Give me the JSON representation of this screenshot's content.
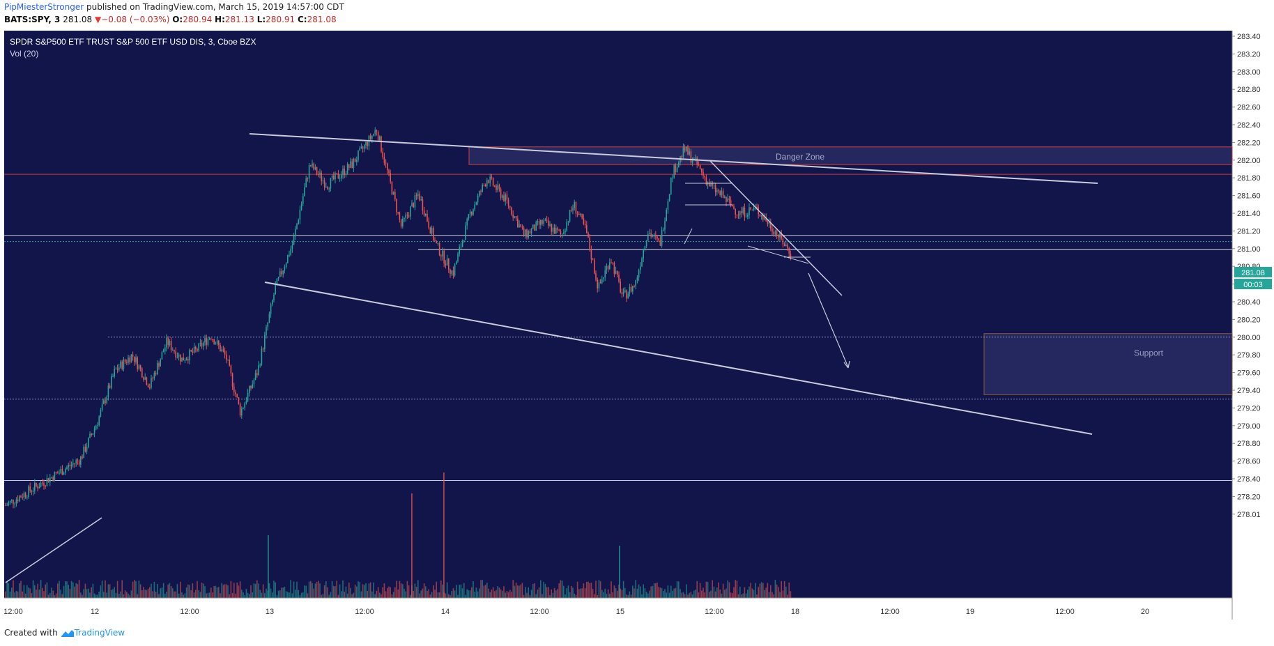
{
  "header": {
    "author": "PipMiesterStronger",
    "published_text": "published on TradingView.com, March 15, 2019 14:57:00 CDT",
    "symbol": "BATS:SPY, 3",
    "last": "281.08",
    "change": "−0.08 (−0.03%)",
    "o_label": "O:",
    "o_value": "280.94",
    "h_label": "H:",
    "h_value": "281.13",
    "l_label": "L:",
    "l_value": "280.91",
    "c_label": "C:",
    "c_value": "281.08"
  },
  "footer": {
    "created_with": "Created with",
    "brand": "TradingView"
  },
  "colors": {
    "background": "#12154a",
    "up": "#26a69a",
    "down": "#ef5350",
    "drawing": "#c9ccdc",
    "zone_border": "#d23c3c",
    "support_border": "#8a5a3a"
  },
  "chart_data": {
    "type": "candlestick",
    "title": "SPDR S&P500 ETF TRUST S&P 500 ETF USD DIS, 3, Cboe BZX",
    "indicator": "Vol (20)",
    "ylim": [
      277.92,
      283.5
    ],
    "y_ticks": [
      "283.40",
      "283.20",
      "283.00",
      "282.80",
      "282.60",
      "282.40",
      "282.20",
      "282.00",
      "281.80",
      "281.60",
      "281.40",
      "281.20",
      "281.00",
      "280.80",
      "280.60",
      "280.40",
      "280.20",
      "280.00",
      "279.80",
      "279.60",
      "279.40",
      "279.20",
      "279.00",
      "278.80",
      "278.60",
      "278.40",
      "278.20",
      "278.01"
    ],
    "x_ticks": [
      "12:00",
      "12",
      "12:00",
      "13",
      "12:00",
      "14",
      "12:00",
      "15",
      "12:00",
      "18",
      "12:00",
      "19",
      "12:00",
      "20"
    ],
    "last_price": "281.08",
    "countdown": "00:03",
    "price_path": [
      [
        "12:00",
        278.1
      ],
      [
        "12",
        278.62
      ],
      [
        "12",
        279.05
      ],
      [
        "12",
        279.62
      ],
      [
        "12",
        279.8
      ],
      [
        "12",
        279.45
      ],
      [
        "12:00",
        279.95
      ],
      [
        "12:00",
        279.75
      ],
      [
        "12:00",
        279.85
      ],
      [
        "12:00",
        280.02
      ],
      [
        "12:00",
        279.78
      ],
      [
        "13",
        279.15
      ],
      [
        "13",
        279.62
      ],
      [
        "13",
        280.55
      ],
      [
        "13",
        281.05
      ],
      [
        "13",
        281.95
      ],
      [
        "12:00",
        281.72
      ],
      [
        "12:00",
        281.95
      ],
      [
        "12:00",
        282.35
      ],
      [
        "14",
        281.25
      ],
      [
        "14",
        281.62
      ],
      [
        "14",
        281.05
      ],
      [
        "14",
        280.72
      ],
      [
        "14",
        281.4
      ],
      [
        "12:00",
        281.8
      ],
      [
        "12:00",
        281.55
      ],
      [
        "12:00",
        281.15
      ],
      [
        "12:00",
        281.3
      ],
      [
        "15",
        281.15
      ],
      [
        "15",
        281.5
      ],
      [
        "15",
        281.2
      ],
      [
        "15",
        280.55
      ],
      [
        "15",
        280.9
      ],
      [
        "15",
        280.45
      ],
      [
        "15",
        280.6
      ],
      [
        "12:00",
        281.2
      ],
      [
        "12:00",
        281.05
      ],
      [
        "12:00",
        281.85
      ],
      [
        "12:00",
        282.12
      ],
      [
        "12:00",
        281.95
      ],
      [
        "12:00",
        281.72
      ],
      [
        "18",
        281.6
      ],
      [
        "18",
        281.4
      ],
      [
        "18",
        281.45
      ],
      [
        "18",
        281.22
      ],
      [
        "18",
        280.95
      ]
    ],
    "horizontal_levels": [
      281.84,
      281.15,
      281.08,
      280.99,
      280.0,
      279.3,
      278.38
    ],
    "zones": [
      {
        "label": "Danger Zone",
        "from": 281.95,
        "to": 282.15
      },
      {
        "label": "Support",
        "from": 279.35,
        "to": 280.04
      }
    ],
    "volume_spikes": [
      3.0,
      6.0,
      2.5,
      5.0
    ]
  }
}
